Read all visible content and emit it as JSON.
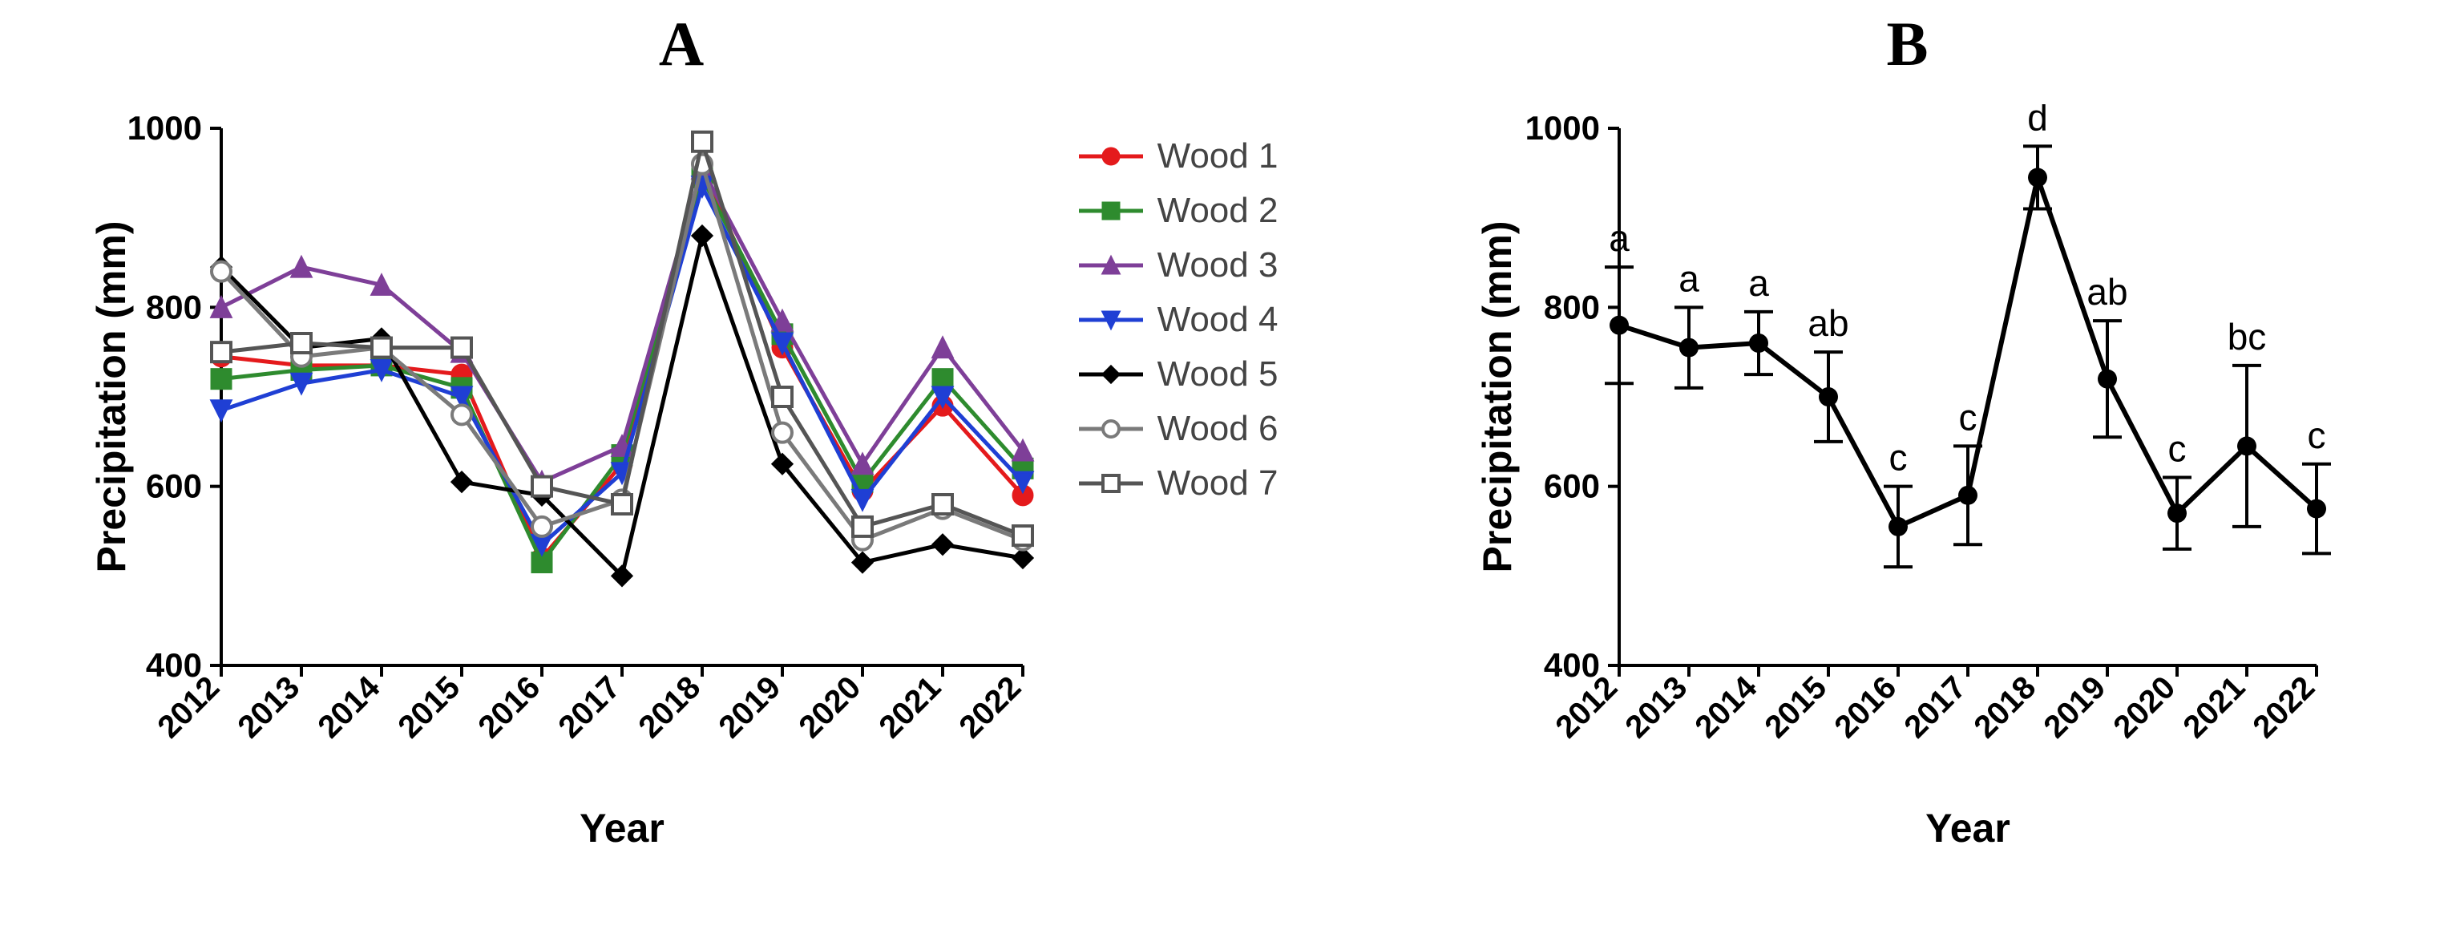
{
  "panels": {
    "A": {
      "title": "A",
      "type": "line",
      "xlabel": "Year",
      "ylabel": "Precipitation (mm)",
      "title_fontsize_pt": 58,
      "axis_label_fontsize_pt": 38,
      "tick_fontsize_pt": 32,
      "background_color": "#ffffff",
      "axis_color": "#000000",
      "axis_line_width": 4,
      "series_line_width": 5,
      "marker_size": 16,
      "xlim": [
        2012,
        2022
      ],
      "ylim": [
        400,
        1000
      ],
      "ytick_step": 200,
      "xticks": [
        "2012",
        "2013",
        "2014",
        "2015",
        "2016",
        "2017",
        "2018",
        "2019",
        "2020",
        "2021",
        "2022"
      ],
      "xtick_rotation_deg": 45,
      "legend_fontsize_pt": 33,
      "series": [
        {
          "name": "Wood 1",
          "color": "#e41a1c",
          "marker": "circle-filled",
          "values": [
            745,
            735,
            735,
            725,
            520,
            625,
            955,
            755,
            595,
            690,
            590
          ]
        },
        {
          "name": "Wood 2",
          "color": "#2e8b2e",
          "marker": "square-filled",
          "values": [
            720,
            730,
            735,
            710,
            515,
            635,
            945,
            770,
            605,
            720,
            620
          ]
        },
        {
          "name": "Wood 3",
          "color": "#7e3f98",
          "marker": "triangle-up-filled",
          "values": [
            800,
            845,
            825,
            750,
            605,
            645,
            955,
            785,
            625,
            755,
            640
          ]
        },
        {
          "name": "Wood 4",
          "color": "#1f3fd4",
          "marker": "triangle-down-filled",
          "values": [
            685,
            715,
            730,
            700,
            535,
            615,
            935,
            760,
            585,
            700,
            605
          ]
        },
        {
          "name": "Wood 5",
          "color": "#000000",
          "marker": "diamond-filled",
          "values": [
            845,
            755,
            765,
            605,
            590,
            500,
            880,
            625,
            515,
            535,
            520
          ]
        },
        {
          "name": "Wood 6",
          "color": "#7a7a7a",
          "marker": "circle-open",
          "values": [
            840,
            745,
            755,
            680,
            555,
            585,
            960,
            660,
            540,
            575,
            540
          ]
        },
        {
          "name": "Wood 7",
          "color": "#555555",
          "marker": "square-open",
          "values": [
            750,
            760,
            755,
            755,
            600,
            580,
            985,
            700,
            555,
            580,
            545
          ]
        }
      ]
    },
    "B": {
      "title": "B",
      "type": "line-errorbars",
      "xlabel": "Year",
      "ylabel": "Precipitation (mm)",
      "title_fontsize_pt": 58,
      "axis_label_fontsize_pt": 38,
      "tick_fontsize_pt": 32,
      "annotation_fontsize_pt": 36,
      "background_color": "#ffffff",
      "axis_color": "#000000",
      "axis_line_width": 4,
      "series_line_width": 6,
      "marker_size": 18,
      "errorbar_cap_width": 18,
      "xlim": [
        2012,
        2022
      ],
      "ylim": [
        400,
        1000
      ],
      "ytick_step": 200,
      "xticks": [
        "2012",
        "2013",
        "2014",
        "2015",
        "2016",
        "2017",
        "2018",
        "2019",
        "2020",
        "2021",
        "2022"
      ],
      "xtick_rotation_deg": 45,
      "series_color": "#000000",
      "mean": [
        780,
        755,
        760,
        700,
        555,
        590,
        945,
        720,
        570,
        645,
        575
      ],
      "err": [
        65,
        45,
        35,
        50,
        45,
        55,
        35,
        65,
        40,
        90,
        50
      ],
      "labels": [
        "a",
        "a",
        "a",
        "ab",
        "c",
        "c",
        "d",
        "ab",
        "c",
        "bc",
        "c"
      ]
    }
  }
}
